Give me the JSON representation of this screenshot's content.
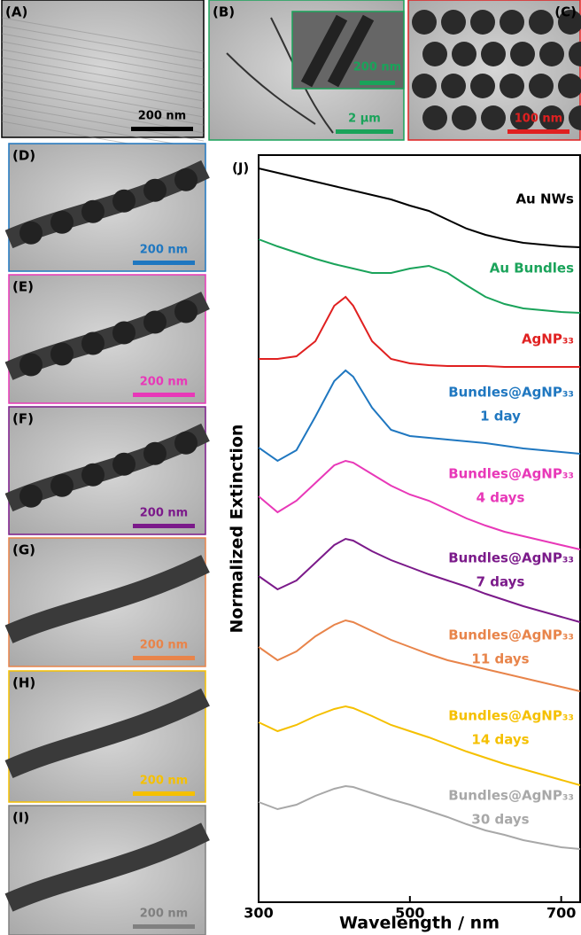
{
  "panels": [
    {
      "label": "(A)",
      "scale": "200 nm",
      "color": "#000000"
    },
    {
      "label": "(B)",
      "scale": "2 µm",
      "inset_scale": "200 nm",
      "color": "#1aa35a"
    },
    {
      "label": "(C)",
      "scale": "100 nm",
      "color": "#e02020"
    },
    {
      "label": "(D)",
      "scale": "200 nm",
      "color": "#1f77c0"
    },
    {
      "label": "(E)",
      "scale": "200 nm",
      "color": "#e838b8"
    },
    {
      "label": "(F)",
      "scale": "200 nm",
      "color": "#7b1a8a"
    },
    {
      "label": "(G)",
      "scale": "200 nm",
      "color": "#e8844a"
    },
    {
      "label": "(H)",
      "scale": "200 nm",
      "color": "#f5c000"
    },
    {
      "label": "(I)",
      "scale": "200 nm",
      "color": "#808080"
    }
  ],
  "chart_data": {
    "type": "line",
    "panel_label": "(J)",
    "x_label": "Wavelength / nm",
    "y_label": "Normalized Extinction",
    "xlim": [
      300,
      725
    ],
    "xticks": [
      300,
      500,
      700
    ],
    "ylim": [
      0,
      843
    ],
    "x": [
      300,
      325,
      350,
      375,
      400,
      415,
      425,
      450,
      475,
      500,
      525,
      550,
      575,
      600,
      625,
      650,
      675,
      700,
      725
    ],
    "series": [
      {
        "name": "Au NWs",
        "color": "#000000",
        "values": [
          828,
          823,
          818,
          813,
          808,
          805,
          803,
          798,
          793,
          786,
          780,
          770,
          760,
          753,
          748,
          744,
          742,
          740,
          739
        ]
      },
      {
        "name": "Au Bundles",
        "color": "#1aa35a",
        "values": [
          748,
          740,
          733,
          726,
          720,
          717,
          715,
          710,
          710,
          715,
          718,
          710,
          696,
          683,
          675,
          670,
          668,
          666,
          665
        ]
      },
      {
        "name": "AgNP₃₃",
        "color": "#e02020",
        "values": [
          613,
          613,
          616,
          633,
          673,
          683,
          673,
          633,
          613,
          608,
          606,
          605,
          605,
          605,
          604,
          604,
          604,
          604,
          604
        ]
      },
      {
        "name": "Bundles@AgNP₃₃",
        "age": "1 day",
        "color": "#1f77c0",
        "values": [
          513,
          498,
          510,
          548,
          588,
          600,
          593,
          558,
          533,
          526,
          524,
          522,
          520,
          518,
          515,
          512,
          510,
          508,
          506
        ]
      },
      {
        "name": "Bundles@AgNP₃₃",
        "age": "4 days",
        "color": "#e838b8",
        "values": [
          458,
          440,
          453,
          473,
          493,
          498,
          496,
          483,
          470,
          460,
          453,
          443,
          433,
          425,
          418,
          413,
          408,
          403,
          398
        ]
      },
      {
        "name": "Bundles@AgNP₃₃",
        "age": "7 days",
        "color": "#7b1a8a",
        "values": [
          368,
          353,
          363,
          383,
          403,
          410,
          408,
          396,
          386,
          378,
          370,
          363,
          356,
          348,
          341,
          334,
          328,
          322,
          316
        ]
      },
      {
        "name": "Bundles@AgNP₃₃",
        "age": "11 days",
        "color": "#e8844a",
        "values": [
          288,
          273,
          283,
          300,
          313,
          318,
          316,
          306,
          296,
          288,
          280,
          273,
          268,
          263,
          258,
          253,
          248,
          243,
          238
        ]
      },
      {
        "name": "Bundles@AgNP₃₃",
        "age": "14 days",
        "color": "#f5c000",
        "values": [
          203,
          193,
          200,
          210,
          218,
          221,
          219,
          210,
          200,
          193,
          186,
          178,
          170,
          163,
          156,
          150,
          144,
          138,
          132
        ]
      },
      {
        "name": "Bundles@AgNP₃₃",
        "age": "30 days",
        "color": "#a8a8a8",
        "values": [
          113,
          105,
          110,
          120,
          128,
          131,
          130,
          123,
          116,
          110,
          103,
          96,
          88,
          81,
          76,
          70,
          66,
          62,
          60
        ]
      }
    ]
  }
}
